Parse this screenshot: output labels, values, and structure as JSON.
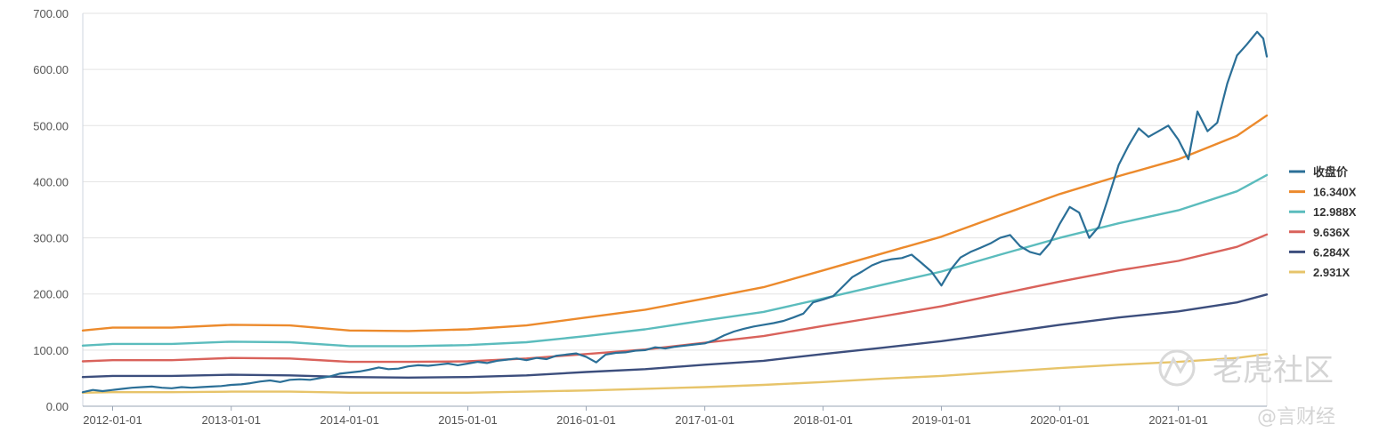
{
  "chart_data": {
    "type": "line",
    "title": "",
    "xlabel": "",
    "ylabel": "",
    "ylim": [
      0,
      700
    ],
    "xlim": [
      "2011-10-01",
      "2021-10-01"
    ],
    "y_ticks": [
      "0.00",
      "100.00",
      "200.00",
      "300.00",
      "400.00",
      "500.00",
      "600.00",
      "700.00"
    ],
    "x_ticks": [
      "2012-01-01",
      "2013-01-01",
      "2014-01-01",
      "2015-01-01",
      "2016-01-01",
      "2017-01-01",
      "2018-01-01",
      "2019-01-01",
      "2020-01-01",
      "2021-01-01"
    ],
    "grid": "horizontal",
    "legend_position": "right",
    "series": [
      {
        "name": "收盘价",
        "color": "#2b6f97",
        "points": [
          [
            "2011-10-01",
            25
          ],
          [
            "2011-11-01",
            29
          ],
          [
            "2011-12-01",
            27
          ],
          [
            "2012-01-01",
            29
          ],
          [
            "2012-02-01",
            31
          ],
          [
            "2012-03-01",
            33
          ],
          [
            "2012-04-01",
            34
          ],
          [
            "2012-05-01",
            35
          ],
          [
            "2012-06-01",
            33
          ],
          [
            "2012-07-01",
            32
          ],
          [
            "2012-08-01",
            34
          ],
          [
            "2012-09-01",
            33
          ],
          [
            "2012-10-01",
            34
          ],
          [
            "2012-11-01",
            35
          ],
          [
            "2012-12-01",
            36
          ],
          [
            "2013-01-01",
            38
          ],
          [
            "2013-02-01",
            39
          ],
          [
            "2013-03-01",
            41
          ],
          [
            "2013-04-01",
            44
          ],
          [
            "2013-05-01",
            46
          ],
          [
            "2013-06-01",
            43
          ],
          [
            "2013-07-01",
            47
          ],
          [
            "2013-08-01",
            48
          ],
          [
            "2013-09-01",
            47
          ],
          [
            "2013-10-01",
            50
          ],
          [
            "2013-11-01",
            53
          ],
          [
            "2013-12-01",
            58
          ],
          [
            "2014-01-01",
            60
          ],
          [
            "2014-02-01",
            62
          ],
          [
            "2014-03-01",
            65
          ],
          [
            "2014-04-01",
            69
          ],
          [
            "2014-05-01",
            66
          ],
          [
            "2014-06-01",
            67
          ],
          [
            "2014-07-01",
            71
          ],
          [
            "2014-08-01",
            73
          ],
          [
            "2014-09-01",
            72
          ],
          [
            "2014-10-01",
            74
          ],
          [
            "2014-11-01",
            76
          ],
          [
            "2014-12-01",
            73
          ],
          [
            "2015-01-01",
            76
          ],
          [
            "2015-02-01",
            79
          ],
          [
            "2015-03-01",
            77
          ],
          [
            "2015-04-01",
            81
          ],
          [
            "2015-05-01",
            83
          ],
          [
            "2015-06-01",
            85
          ],
          [
            "2015-07-01",
            82
          ],
          [
            "2015-08-01",
            86
          ],
          [
            "2015-09-01",
            84
          ],
          [
            "2015-10-01",
            90
          ],
          [
            "2015-11-01",
            92
          ],
          [
            "2015-12-01",
            94
          ],
          [
            "2016-01-01",
            88
          ],
          [
            "2016-02-01",
            78
          ],
          [
            "2016-03-01",
            92
          ],
          [
            "2016-04-01",
            95
          ],
          [
            "2016-05-01",
            96
          ],
          [
            "2016-06-01",
            99
          ],
          [
            "2016-07-01",
            100
          ],
          [
            "2016-08-01",
            105
          ],
          [
            "2016-09-01",
            103
          ],
          [
            "2016-10-01",
            106
          ],
          [
            "2016-11-01",
            108
          ],
          [
            "2016-12-01",
            110
          ],
          [
            "2017-01-01",
            112
          ],
          [
            "2017-02-01",
            118
          ],
          [
            "2017-03-01",
            126
          ],
          [
            "2017-04-01",
            133
          ],
          [
            "2017-05-01",
            138
          ],
          [
            "2017-06-01",
            142
          ],
          [
            "2017-07-01",
            145
          ],
          [
            "2017-08-01",
            148
          ],
          [
            "2017-09-01",
            152
          ],
          [
            "2017-10-01",
            158
          ],
          [
            "2017-11-01",
            165
          ],
          [
            "2017-12-01",
            185
          ],
          [
            "2018-01-01",
            190
          ],
          [
            "2018-02-01",
            196
          ],
          [
            "2018-03-01",
            212
          ],
          [
            "2018-04-01",
            230
          ],
          [
            "2018-05-01",
            240
          ],
          [
            "2018-06-01",
            251
          ],
          [
            "2018-07-01",
            258
          ],
          [
            "2018-08-01",
            262
          ],
          [
            "2018-09-01",
            264
          ],
          [
            "2018-10-01",
            270
          ],
          [
            "2018-11-01",
            255
          ],
          [
            "2018-12-01",
            240
          ],
          [
            "2019-01-01",
            215
          ],
          [
            "2019-02-01",
            245
          ],
          [
            "2019-03-01",
            265
          ],
          [
            "2019-04-01",
            275
          ],
          [
            "2019-05-01",
            282
          ],
          [
            "2019-06-01",
            290
          ],
          [
            "2019-07-01",
            300
          ],
          [
            "2019-08-01",
            305
          ],
          [
            "2019-09-01",
            285
          ],
          [
            "2019-10-01",
            275
          ],
          [
            "2019-11-01",
            270
          ],
          [
            "2019-12-01",
            290
          ],
          [
            "2020-01-01",
            325
          ],
          [
            "2020-02-01",
            355
          ],
          [
            "2020-03-01",
            345
          ],
          [
            "2020-04-01",
            300
          ],
          [
            "2020-05-01",
            320
          ],
          [
            "2020-06-01",
            375
          ],
          [
            "2020-07-01",
            430
          ],
          [
            "2020-08-01",
            465
          ],
          [
            "2020-09-01",
            495
          ],
          [
            "2020-10-01",
            480
          ],
          [
            "2020-11-01",
            490
          ],
          [
            "2020-12-01",
            500
          ],
          [
            "2021-01-01",
            475
          ],
          [
            "2021-02-01",
            440
          ],
          [
            "2021-03-01",
            525
          ],
          [
            "2021-04-01",
            490
          ],
          [
            "2021-05-01",
            505
          ],
          [
            "2021-06-01",
            575
          ],
          [
            "2021-07-01",
            625
          ],
          [
            "2021-08-01",
            645
          ],
          [
            "2021-09-01",
            667
          ],
          [
            "2021-09-20",
            655
          ],
          [
            "2021-10-01",
            623
          ]
        ]
      },
      {
        "name": "16.340X",
        "color": "#ec8a2c",
        "points": [
          [
            "2011-10-01",
            135
          ],
          [
            "2012-01-01",
            140
          ],
          [
            "2012-07-01",
            140
          ],
          [
            "2013-01-01",
            145
          ],
          [
            "2013-07-01",
            144
          ],
          [
            "2014-01-01",
            135
          ],
          [
            "2014-07-01",
            134
          ],
          [
            "2015-01-01",
            137
          ],
          [
            "2015-07-01",
            144
          ],
          [
            "2016-01-01",
            158
          ],
          [
            "2016-07-01",
            172
          ],
          [
            "2017-01-01",
            192
          ],
          [
            "2017-07-01",
            212
          ],
          [
            "2018-01-01",
            242
          ],
          [
            "2018-07-01",
            272
          ],
          [
            "2019-01-01",
            302
          ],
          [
            "2019-07-01",
            340
          ],
          [
            "2020-01-01",
            378
          ],
          [
            "2020-07-01",
            410
          ],
          [
            "2021-01-01",
            440
          ],
          [
            "2021-07-01",
            482
          ],
          [
            "2021-10-01",
            518
          ]
        ]
      },
      {
        "name": "12.988X",
        "color": "#5bbcbd",
        "points": [
          [
            "2011-10-01",
            108
          ],
          [
            "2012-01-01",
            111
          ],
          [
            "2012-07-01",
            111
          ],
          [
            "2013-01-01",
            115
          ],
          [
            "2013-07-01",
            114
          ],
          [
            "2014-01-01",
            107
          ],
          [
            "2014-07-01",
            107
          ],
          [
            "2015-01-01",
            109
          ],
          [
            "2015-07-01",
            114
          ],
          [
            "2016-01-01",
            125
          ],
          [
            "2016-07-01",
            137
          ],
          [
            "2017-01-01",
            153
          ],
          [
            "2017-07-01",
            168
          ],
          [
            "2018-01-01",
            192
          ],
          [
            "2018-07-01",
            216
          ],
          [
            "2019-01-01",
            240
          ],
          [
            "2019-07-01",
            270
          ],
          [
            "2020-01-01",
            300
          ],
          [
            "2020-07-01",
            326
          ],
          [
            "2021-01-01",
            349
          ],
          [
            "2021-07-01",
            383
          ],
          [
            "2021-10-01",
            412
          ]
        ]
      },
      {
        "name": "9.636X",
        "color": "#d9625b",
        "points": [
          [
            "2011-10-01",
            80
          ],
          [
            "2012-01-01",
            82
          ],
          [
            "2012-07-01",
            82
          ],
          [
            "2013-01-01",
            86
          ],
          [
            "2013-07-01",
            85
          ],
          [
            "2014-01-01",
            79
          ],
          [
            "2014-07-01",
            79
          ],
          [
            "2015-01-01",
            80
          ],
          [
            "2015-07-01",
            85
          ],
          [
            "2016-01-01",
            93
          ],
          [
            "2016-07-01",
            101
          ],
          [
            "2017-01-01",
            113
          ],
          [
            "2017-07-01",
            125
          ],
          [
            "2018-01-01",
            143
          ],
          [
            "2018-07-01",
            160
          ],
          [
            "2019-01-01",
            178
          ],
          [
            "2019-07-01",
            200
          ],
          [
            "2020-01-01",
            222
          ],
          [
            "2020-07-01",
            242
          ],
          [
            "2021-01-01",
            259
          ],
          [
            "2021-07-01",
            284
          ],
          [
            "2021-10-01",
            306
          ]
        ]
      },
      {
        "name": "6.284X",
        "color": "#3c4e7d",
        "points": [
          [
            "2011-10-01",
            52
          ],
          [
            "2012-01-01",
            54
          ],
          [
            "2012-07-01",
            54
          ],
          [
            "2013-01-01",
            56
          ],
          [
            "2013-07-01",
            55
          ],
          [
            "2014-01-01",
            52
          ],
          [
            "2014-07-01",
            51
          ],
          [
            "2015-01-01",
            52
          ],
          [
            "2015-07-01",
            55
          ],
          [
            "2016-01-01",
            61
          ],
          [
            "2016-07-01",
            66
          ],
          [
            "2017-01-01",
            74
          ],
          [
            "2017-07-01",
            81
          ],
          [
            "2018-01-01",
            93
          ],
          [
            "2018-07-01",
            104
          ],
          [
            "2019-01-01",
            116
          ],
          [
            "2019-07-01",
            130
          ],
          [
            "2020-01-01",
            145
          ],
          [
            "2020-07-01",
            158
          ],
          [
            "2021-01-01",
            169
          ],
          [
            "2021-07-01",
            185
          ],
          [
            "2021-10-01",
            199
          ]
        ]
      },
      {
        "name": "2.931X",
        "color": "#e7c46a",
        "points": [
          [
            "2011-10-01",
            24
          ],
          [
            "2012-01-01",
            25
          ],
          [
            "2012-07-01",
            25
          ],
          [
            "2013-01-01",
            26
          ],
          [
            "2013-07-01",
            26
          ],
          [
            "2014-01-01",
            24
          ],
          [
            "2014-07-01",
            24
          ],
          [
            "2015-01-01",
            24
          ],
          [
            "2015-07-01",
            26
          ],
          [
            "2016-01-01",
            28
          ],
          [
            "2016-07-01",
            31
          ],
          [
            "2017-01-01",
            34
          ],
          [
            "2017-07-01",
            38
          ],
          [
            "2018-01-01",
            43
          ],
          [
            "2018-07-01",
            49
          ],
          [
            "2019-01-01",
            54
          ],
          [
            "2019-07-01",
            61
          ],
          [
            "2020-01-01",
            68
          ],
          [
            "2020-07-01",
            74
          ],
          [
            "2021-01-01",
            79
          ],
          [
            "2021-07-01",
            86
          ],
          [
            "2021-10-01",
            93
          ]
        ]
      }
    ]
  },
  "watermark": {
    "main_text": "老虎社区",
    "sub_text": "@言财经"
  }
}
